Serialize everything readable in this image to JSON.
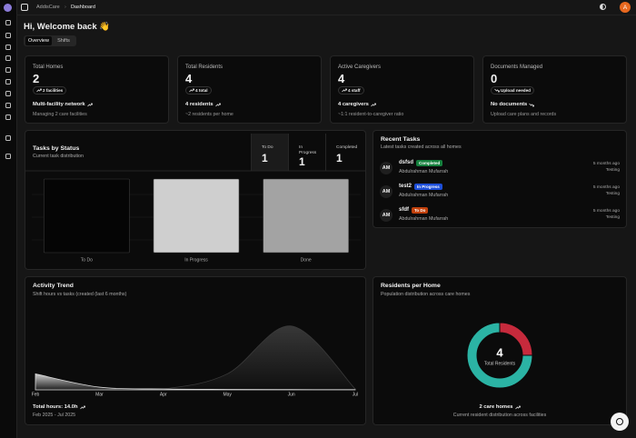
{
  "header": {
    "breadcrumb": [
      "AddisCare",
      "Dashboard"
    ],
    "avatar": "A"
  },
  "greeting": "Hi, Welcome back 👋",
  "tabs": [
    "Overview",
    "Shifts"
  ],
  "stats": [
    {
      "label": "Total Homes",
      "value": 2,
      "badge": "2 facilities",
      "trend": "up",
      "note": "Multi-facility network",
      "sub": "Managing 2 care facilities"
    },
    {
      "label": "Total Residents",
      "value": 4,
      "badge": "4 total",
      "trend": "up",
      "note": "4 residents",
      "sub": "~2 residents per home"
    },
    {
      "label": "Active Caregivers",
      "value": 4,
      "badge": "4 staff",
      "trend": "up",
      "note": "4 caregivers",
      "sub": "~1:1 resident-to-caregiver ratio"
    },
    {
      "label": "Documents Managed",
      "value": 0,
      "badge": "Upload needed",
      "trend": "down",
      "note": "No documents",
      "sub": "Upload care plans and records"
    }
  ],
  "recent_tasks": {
    "title": "Recent Tasks",
    "subtitle": "Latest tasks created across all homes",
    "items": [
      {
        "initials": "AM",
        "name": "dsfsd",
        "status": "Completed",
        "person": "Abdulrahman Mufarrah",
        "time": "5 months ago",
        "home": "Testing"
      },
      {
        "initials": "AM",
        "name": "test2",
        "status": "In Progress",
        "person": "Abdulrahman Mufarrah",
        "time": "5 months ago",
        "home": "Testing"
      },
      {
        "initials": "AM",
        "name": "sfdf",
        "status": "To Do",
        "person": "Abdulrahman Mufarrah",
        "time": "5 months ago",
        "home": "Testing"
      }
    ]
  },
  "chart_data": [
    {
      "type": "bar",
      "title": "Tasks by Status",
      "subtitle": "Current task distribution",
      "summary": [
        {
          "label": "To Do",
          "value": 1
        },
        {
          "label": "In Progress",
          "value": 1
        },
        {
          "label": "Completed",
          "value": 1
        }
      ],
      "categories": [
        "To Do",
        "In Progress",
        "Done"
      ],
      "values": [
        1,
        1,
        1
      ],
      "colors": [
        "#050505",
        "#cfcfcf",
        "#a3a3a3"
      ],
      "ylim": [
        0,
        1
      ]
    },
    {
      "type": "area",
      "title": "Activity Trend",
      "subtitle": "Shift hours vs tasks (created (last 6 months)",
      "categories": [
        "Feb",
        "Mar",
        "Apr",
        "May",
        "Jun",
        "Jul"
      ],
      "series": [
        {
          "color": "#3a3a3a",
          "values": [
            0,
            0,
            1,
            18,
            72,
            1
          ]
        },
        {
          "color": "#d9d9d9",
          "values": [
            18,
            3,
            1,
            0.5,
            0.3,
            0.2
          ]
        }
      ],
      "ylim": [
        0,
        80
      ],
      "note": "Total hours: 14.0h",
      "period": "Feb 2025 - Jul 2025"
    },
    {
      "type": "donut",
      "title": "Residents per Home",
      "subtitle": "Population distribution across care homes",
      "values": [
        1,
        3
      ],
      "colors": [
        "#c62a3c",
        "#2bb3a4"
      ],
      "center_value": 4,
      "center_label": "Total Residents",
      "footer": "2 care homes",
      "footer_sub": "Current resident distribution across facilities"
    }
  ]
}
